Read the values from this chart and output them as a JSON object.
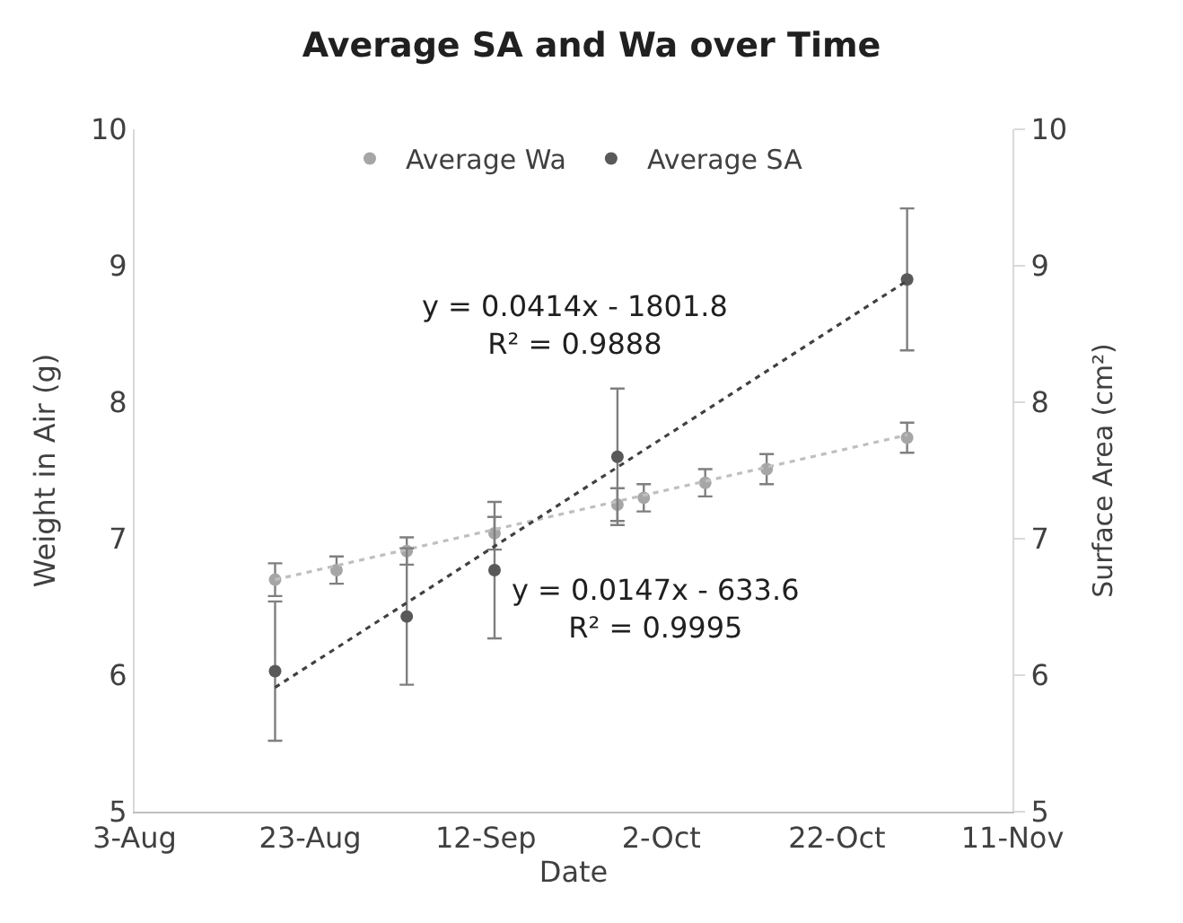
{
  "chart_data": {
    "type": "scatter",
    "title": "Average SA and Wa over Time",
    "xlabel": "Date",
    "ylabel": "Weight in Air (g)",
    "y2label": "Surface Area (cm²)",
    "annotations": [
      "y = 0.0414x - 1801.8\nR² = 0.9888",
      "y = 0.0147x - 633.6\nR² = 0.9995"
    ],
    "xlim": [
      "--08-03",
      "--11-11"
    ],
    "xticks": [
      {
        "value": "--08-03",
        "label": "3-Aug"
      },
      {
        "value": "--08-23",
        "label": "23-Aug"
      },
      {
        "value": "--09-12",
        "label": "12-Sep"
      },
      {
        "value": "--10-02",
        "label": "2-Oct"
      },
      {
        "value": "--10-22",
        "label": "22-Oct"
      },
      {
        "value": "--11-11",
        "label": "11-Nov"
      }
    ],
    "ylim": [
      5,
      10
    ],
    "yticks": [
      5,
      6,
      7,
      8,
      9,
      10
    ],
    "y2lim": [
      5,
      10
    ],
    "y2ticks": [
      5,
      6,
      7,
      8,
      9,
      10
    ],
    "grid": false,
    "legend": "top",
    "series": [
      {
        "name": "Average Wa",
        "color": "#a6a6a6",
        "marker": "circle",
        "x": [
          "--08-19",
          "--08-26",
          "--09-03",
          "--09-13",
          "--09-27",
          "--09-30",
          "--10-07",
          "--10-14",
          "--10-30"
        ],
        "values": [
          6.7,
          6.77,
          6.91,
          7.04,
          7.25,
          7.3,
          7.41,
          7.51,
          7.74
        ],
        "errors": [
          0.12,
          0.1,
          0.1,
          0.12,
          0.12,
          0.1,
          0.1,
          0.11,
          0.11
        ]
      },
      {
        "name": "Average SA",
        "axis": "y2",
        "color": "#595959",
        "marker": "circle",
        "x": [
          "--08-19",
          "--09-03",
          "--09-13",
          "--09-27",
          "--10-30"
        ],
        "values": [
          6.03,
          6.43,
          6.77,
          7.6,
          8.9
        ],
        "errors": [
          0.51,
          0.5,
          0.5,
          0.5,
          0.52
        ]
      },
      {
        "type": "line",
        "color": "#bfbfbf",
        "line_style": "dotted",
        "marker": "none",
        "x": [
          "--08-19",
          "--10-30"
        ],
        "values": [
          6.7,
          7.76
        ]
      },
      {
        "type": "line",
        "axis": "y2",
        "color": "#404040",
        "line_style": "dotted",
        "marker": "none",
        "x": [
          "--08-19",
          "--10-30"
        ],
        "values": [
          5.91,
          8.89
        ]
      }
    ]
  }
}
